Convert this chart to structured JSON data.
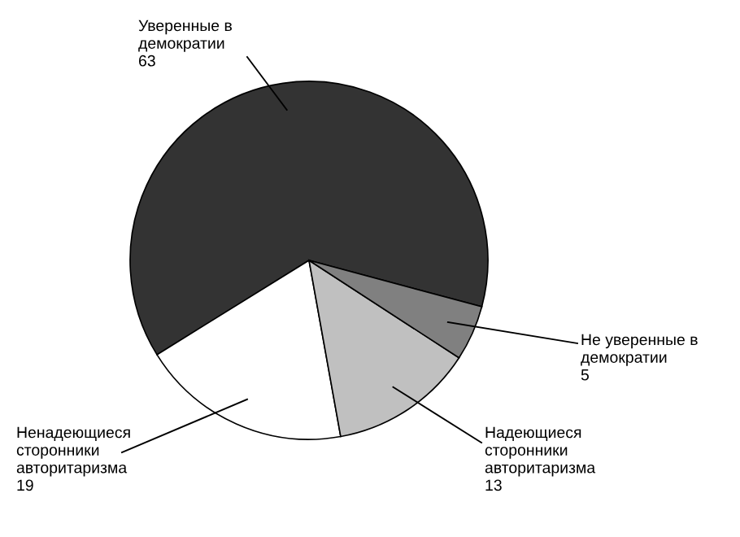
{
  "chart_data": {
    "type": "pie",
    "categories": [
      "Уверенные в\nдемократии",
      "Ненадеющиеся\nсторонники\nавторитаризма",
      "Надеющиеся\nсторонники\nавторитаризма",
      "Не уверенные в\nдемократии"
    ],
    "values": [
      63,
      19,
      13,
      5
    ],
    "colors": [
      "#333333",
      "#ffffff",
      "#c0c0c0",
      "#808080"
    ],
    "data_labels": true,
    "legend": false
  }
}
